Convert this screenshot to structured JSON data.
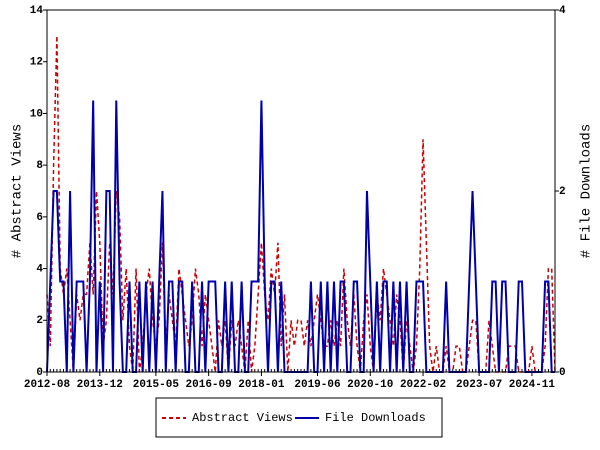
{
  "chart_data": {
    "type": "line",
    "y_label": "# Abstract Views",
    "y2_label": "# File Downloads",
    "x": [
      "2012-08",
      "2012-09",
      "2012-10",
      "2012-11",
      "2012-12",
      "2013-01",
      "2013-02",
      "2013-03",
      "2013-04",
      "2013-05",
      "2013-06",
      "2013-07",
      "2013-08",
      "2013-09",
      "2013-10",
      "2013-11",
      "2013-12",
      "2014-01",
      "2014-02",
      "2014-03",
      "2014-04",
      "2014-05",
      "2014-06",
      "2014-07",
      "2014-08",
      "2014-09",
      "2014-10",
      "2014-11",
      "2014-12",
      "2015-01",
      "2015-02",
      "2015-03",
      "2015-04",
      "2015-05",
      "2015-06",
      "2015-07",
      "2015-08",
      "2015-09",
      "2015-10",
      "2015-11",
      "2015-12",
      "2016-01",
      "2016-02",
      "2016-03",
      "2016-04",
      "2016-05",
      "2016-06",
      "2016-07",
      "2016-08",
      "2016-09",
      "2016-10",
      "2016-11",
      "2016-12",
      "2017-01",
      "2017-02",
      "2017-03",
      "2017-04",
      "2017-05",
      "2017-06",
      "2017-07",
      "2017-08",
      "2017-09",
      "2017-10",
      "2017-11",
      "2017-12",
      "2018-01",
      "2018-02",
      "2018-03",
      "2018-04",
      "2018-05",
      "2018-06",
      "2018-07",
      "2018-08",
      "2018-09",
      "2018-10",
      "2018-11",
      "2018-12",
      "2019-01",
      "2019-02",
      "2019-03",
      "2019-04",
      "2019-05",
      "2019-06",
      "2019-07",
      "2019-08",
      "2019-09",
      "2019-10",
      "2019-11",
      "2019-12",
      "2020-01",
      "2020-02",
      "2020-03",
      "2020-04",
      "2020-05",
      "2020-06",
      "2020-07",
      "2020-08",
      "2020-09",
      "2020-10",
      "2020-11",
      "2020-12",
      "2021-01",
      "2021-02",
      "2021-03",
      "2021-04",
      "2021-05",
      "2021-06",
      "2021-07",
      "2021-08",
      "2021-09",
      "2021-10",
      "2021-11",
      "2021-12",
      "2022-01",
      "2022-02",
      "2022-03",
      "2022-04",
      "2022-05",
      "2022-06",
      "2022-07",
      "2022-08",
      "2022-09",
      "2022-10",
      "2022-11",
      "2022-12",
      "2023-01",
      "2023-02",
      "2023-03",
      "2023-04",
      "2023-05",
      "2023-06",
      "2023-07",
      "2023-08",
      "2023-09",
      "2023-10",
      "2023-11",
      "2023-12",
      "2024-01",
      "2024-02",
      "2024-03",
      "2024-04",
      "2024-05",
      "2024-06",
      "2024-07",
      "2024-08",
      "2024-09",
      "2024-10",
      "2024-11",
      "2024-12",
      "2025-01",
      "2025-02",
      "2025-03",
      "2025-04",
      "2025-05",
      "2025-06"
    ],
    "xticks": [
      "2012-08",
      "2013-12",
      "2015-05",
      "2016-09",
      "2018-01",
      "2019-06",
      "2020-10",
      "2022-02",
      "2023-07",
      "2024-11"
    ],
    "ylim": [
      0,
      14
    ],
    "yticks": [
      0,
      2,
      4,
      6,
      8,
      10,
      12,
      14
    ],
    "y2lim": [
      0,
      4
    ],
    "y2ticks": [
      0,
      2,
      4
    ],
    "series": [
      {
        "name": "Abstract Views",
        "color": "#cc0000",
        "dashed": true,
        "values": [
          3,
          1,
          8,
          13,
          4,
          3,
          4,
          2,
          0,
          3,
          2,
          3,
          3,
          5,
          3,
          7,
          5,
          1,
          2,
          5,
          3,
          7,
          6,
          2,
          4,
          1,
          0,
          4,
          0,
          1,
          3,
          4,
          2,
          1,
          2,
          5,
          1,
          3,
          2,
          1,
          4,
          3,
          2,
          1,
          2,
          4,
          3,
          1,
          3,
          2,
          1,
          0,
          2,
          1,
          2,
          0,
          2,
          1,
          2,
          1,
          0,
          2,
          0,
          1,
          3,
          5,
          3,
          2,
          4,
          3,
          5,
          1,
          3,
          0,
          2,
          1,
          2,
          2,
          1,
          2,
          1,
          2,
          3,
          2,
          1,
          1,
          2,
          1,
          2,
          1,
          4,
          2,
          1,
          3,
          1,
          0,
          2,
          3,
          1,
          0,
          3,
          2,
          4,
          3,
          2,
          1,
          3,
          2,
          0,
          2,
          1,
          0,
          1,
          4,
          9,
          5,
          1,
          0,
          1,
          0,
          0,
          1,
          0,
          0,
          1,
          1,
          0,
          0,
          1,
          2,
          2,
          0,
          0,
          0,
          2,
          1,
          0,
          0,
          0,
          0,
          1,
          1,
          1,
          0,
          0,
          0,
          0,
          1,
          0,
          0,
          0,
          1,
          4,
          4,
          0
        ]
      },
      {
        "name": "File Downloads",
        "color": "#0000aa",
        "axis": "y2",
        "values": [
          0,
          1,
          2,
          2,
          1,
          1,
          0,
          2,
          0,
          1,
          1,
          1,
          0,
          1,
          3,
          0,
          1,
          0,
          2,
          2,
          0,
          3,
          1,
          0,
          0,
          1,
          0,
          0,
          1,
          0,
          1,
          0,
          1,
          0,
          1,
          2,
          0,
          1,
          1,
          0,
          1,
          1,
          0,
          0,
          1,
          0,
          0,
          1,
          0,
          1,
          1,
          1,
          0,
          0,
          1,
          0,
          1,
          0,
          0,
          1,
          0,
          0,
          1,
          1,
          1,
          3,
          1,
          0,
          1,
          1,
          0,
          1,
          0,
          0,
          0,
          0,
          0,
          0,
          0,
          0,
          1,
          0,
          0,
          1,
          0,
          1,
          0,
          1,
          0,
          1,
          1,
          0,
          0,
          1,
          1,
          0,
          0,
          2,
          1,
          0,
          1,
          0,
          1,
          1,
          0,
          1,
          0,
          1,
          0,
          1,
          0,
          0,
          1,
          1,
          1,
          0,
          0,
          0,
          0,
          0,
          0,
          1,
          0,
          0,
          0,
          0,
          0,
          0,
          1,
          2,
          1,
          0,
          0,
          0,
          0,
          1,
          1,
          0,
          1,
          1,
          0,
          0,
          0,
          1,
          1,
          0,
          0,
          0,
          0,
          0,
          0,
          1,
          1,
          0,
          0
        ]
      }
    ]
  }
}
